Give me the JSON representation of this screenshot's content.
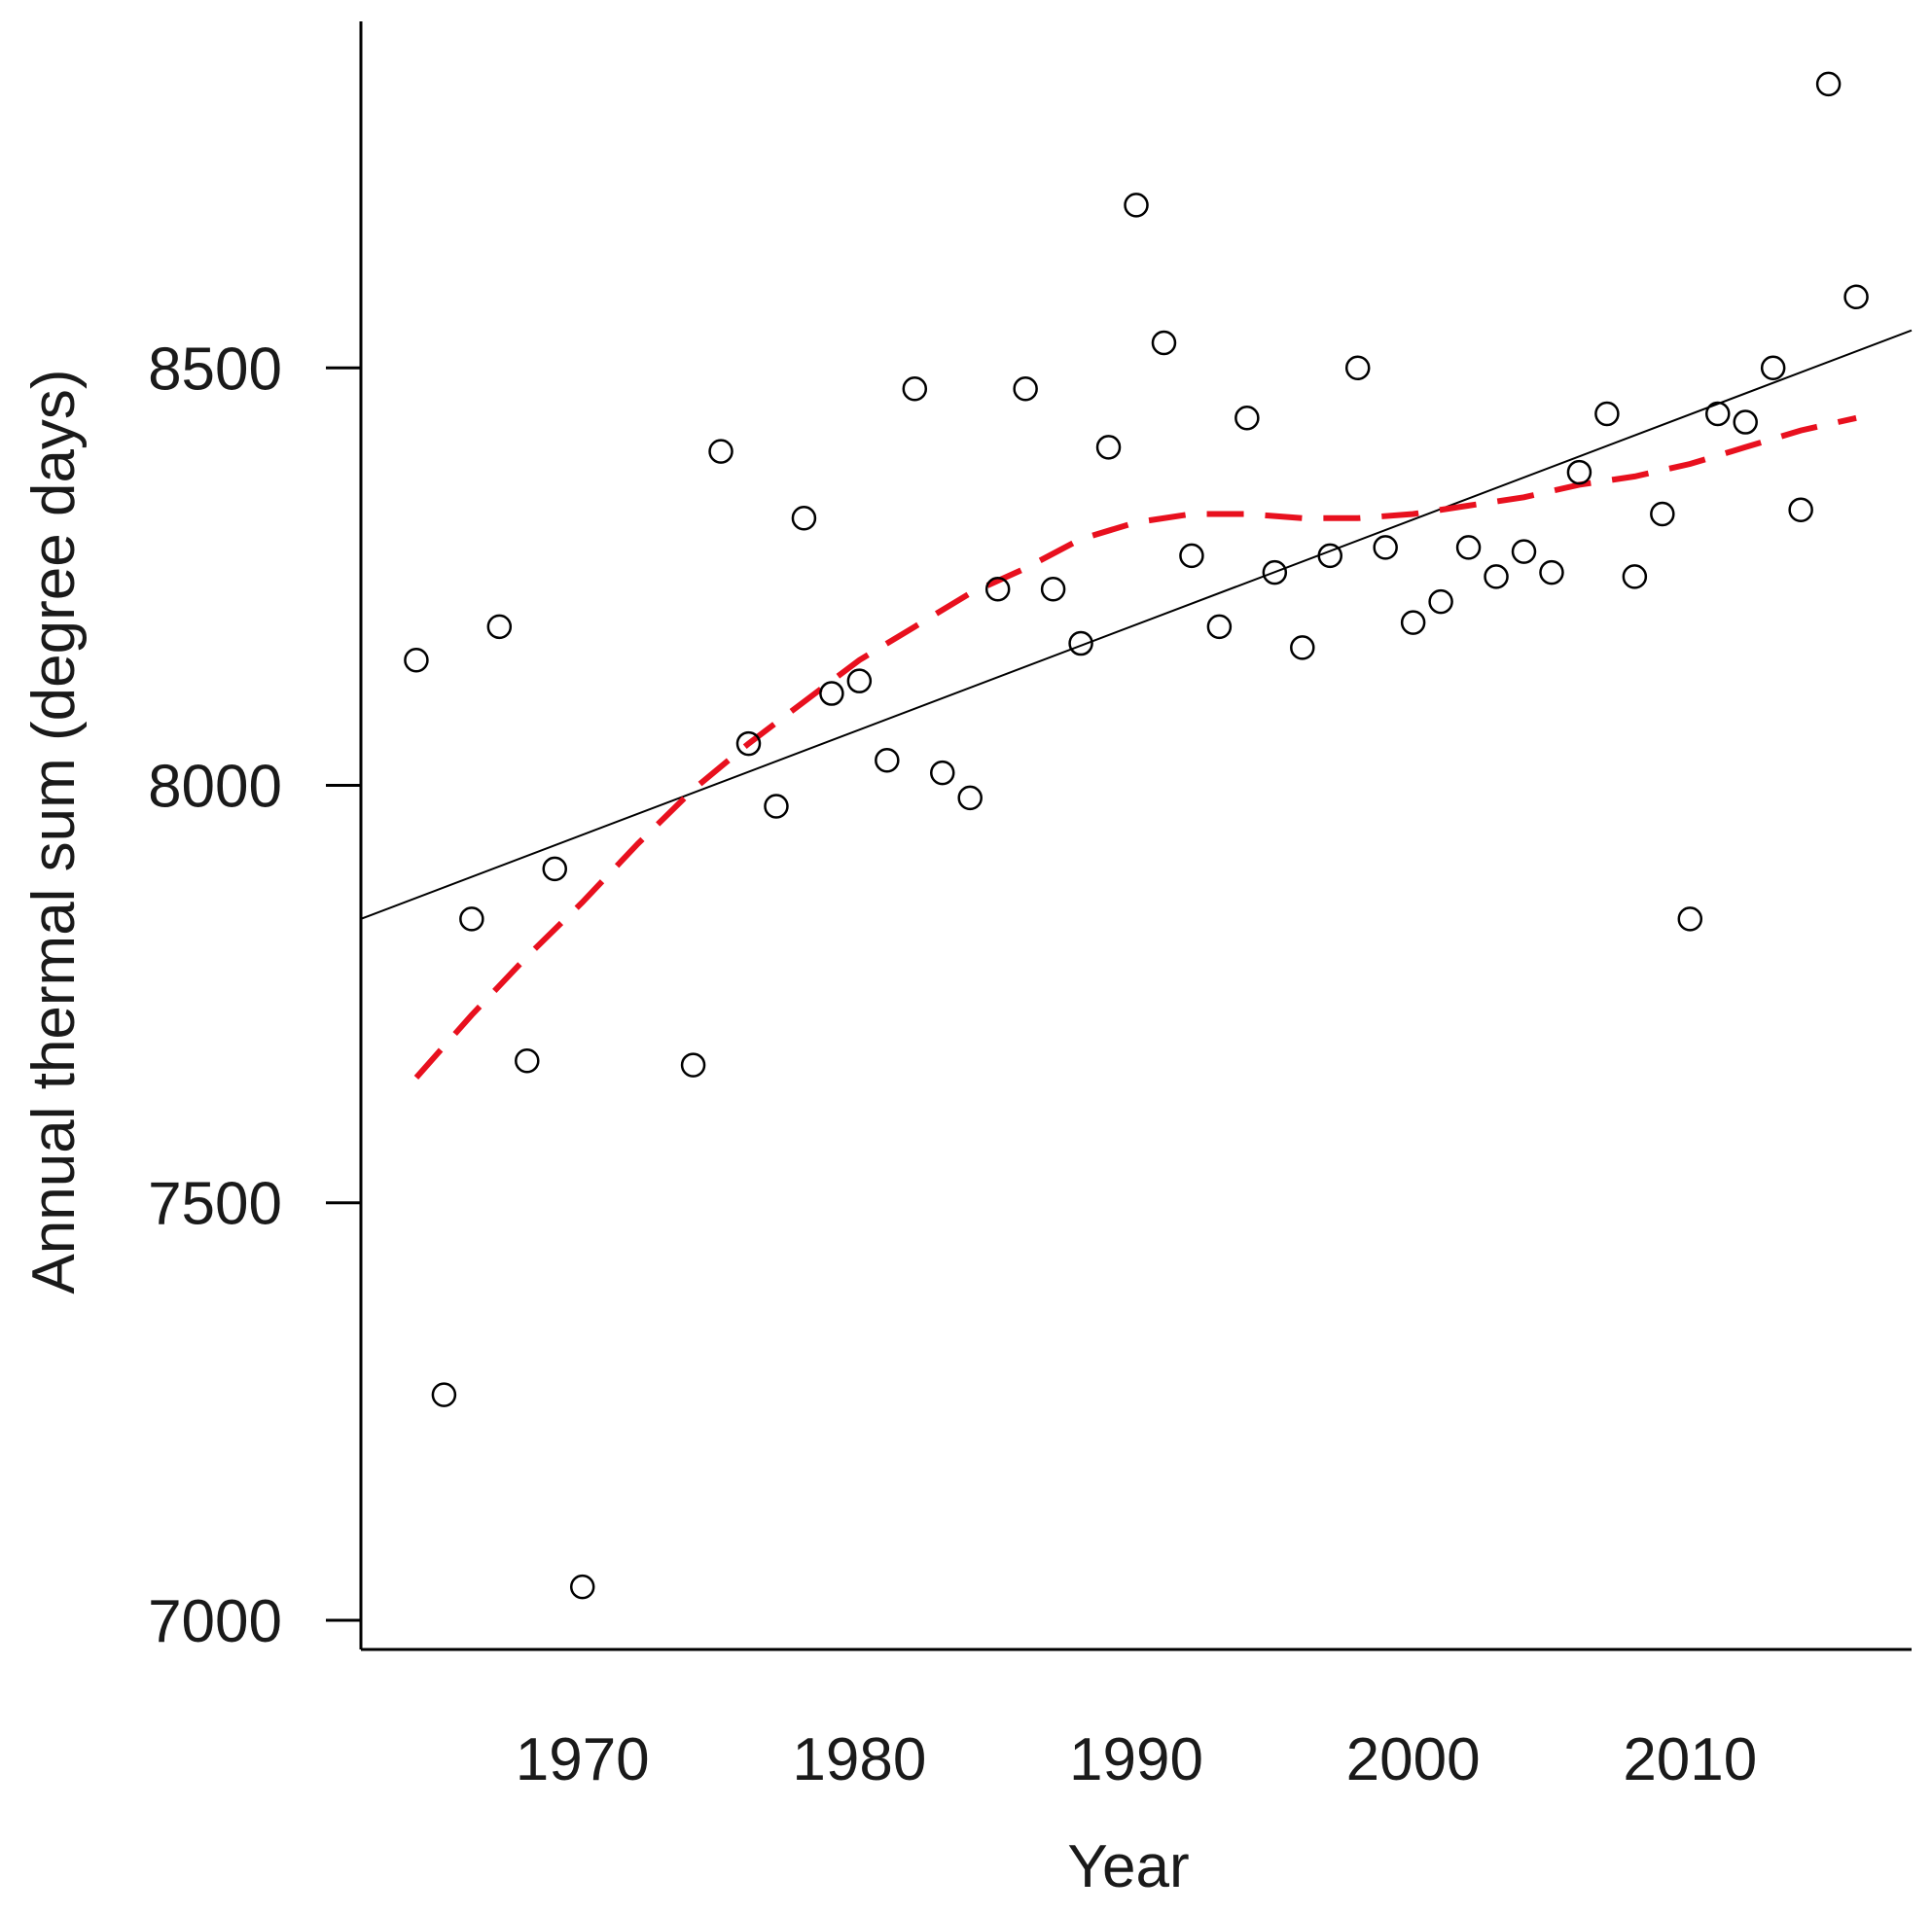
{
  "chart_data": {
    "type": "scatter",
    "title": "",
    "xlabel": "Year",
    "ylabel": "Annual thermal sum (degree days)",
    "xlim": [
      1962,
      2018
    ],
    "ylim": [
      6965,
      8915
    ],
    "x_ticks": [
      1970,
      1980,
      1990,
      2000,
      2010
    ],
    "y_ticks": [
      7000,
      7500,
      8000,
      8500
    ],
    "grid": false,
    "legend": "none",
    "series": [
      {
        "kind": "points",
        "color": "#000000",
        "marker": "open-circle",
        "x": [
          1964,
          1965,
          1966,
          1967,
          1968,
          1969,
          1970,
          1974,
          1975,
          1976,
          1977,
          1978,
          1979,
          1980,
          1981,
          1982,
          1983,
          1984,
          1985,
          1986,
          1987,
          1988,
          1989,
          1990,
          1991,
          1992,
          1993,
          1994,
          1995,
          1996,
          1997,
          1998,
          1999,
          2000,
          2001,
          2002,
          2003,
          2004,
          2005,
          2006,
          2007,
          2008,
          2009,
          2010,
          2011,
          2012,
          2013,
          2014,
          2015,
          2016
        ],
        "y": [
          8150,
          7270,
          7840,
          8190,
          7670,
          7900,
          7040,
          7665,
          8400,
          8050,
          7975,
          8320,
          8110,
          8125,
          8030,
          8475,
          8015,
          7985,
          8235,
          8475,
          8235,
          8170,
          8405,
          8695,
          8530,
          8275,
          8190,
          8440,
          8255,
          8165,
          8275,
          8500,
          8285,
          8195,
          8220,
          8285,
          8250,
          8280,
          8255,
          8375,
          8445,
          8250,
          8325,
          7840,
          8445,
          8435,
          8500,
          8330,
          8840,
          8585
        ]
      },
      {
        "kind": "linear-trend",
        "color": "#000000",
        "style": "solid",
        "x": [
          1962,
          2018
        ],
        "y": [
          7840,
          8545
        ]
      },
      {
        "kind": "smooth",
        "color": "#e8101e",
        "style": "dashed",
        "x": [
          1964,
          1966,
          1968,
          1970,
          1972,
          1974,
          1976,
          1978,
          1980,
          1982,
          1984,
          1986,
          1988,
          1990,
          1992,
          1994,
          1996,
          1998,
          2000,
          2002,
          2004,
          2006,
          2008,
          2010,
          2012,
          2014,
          2016
        ],
        "y": [
          7650,
          7725,
          7795,
          7860,
          7930,
          7995,
          8050,
          8100,
          8150,
          8190,
          8230,
          8260,
          8295,
          8315,
          8325,
          8325,
          8320,
          8320,
          8325,
          8335,
          8345,
          8360,
          8370,
          8385,
          8405,
          8425,
          8440
        ]
      }
    ]
  }
}
